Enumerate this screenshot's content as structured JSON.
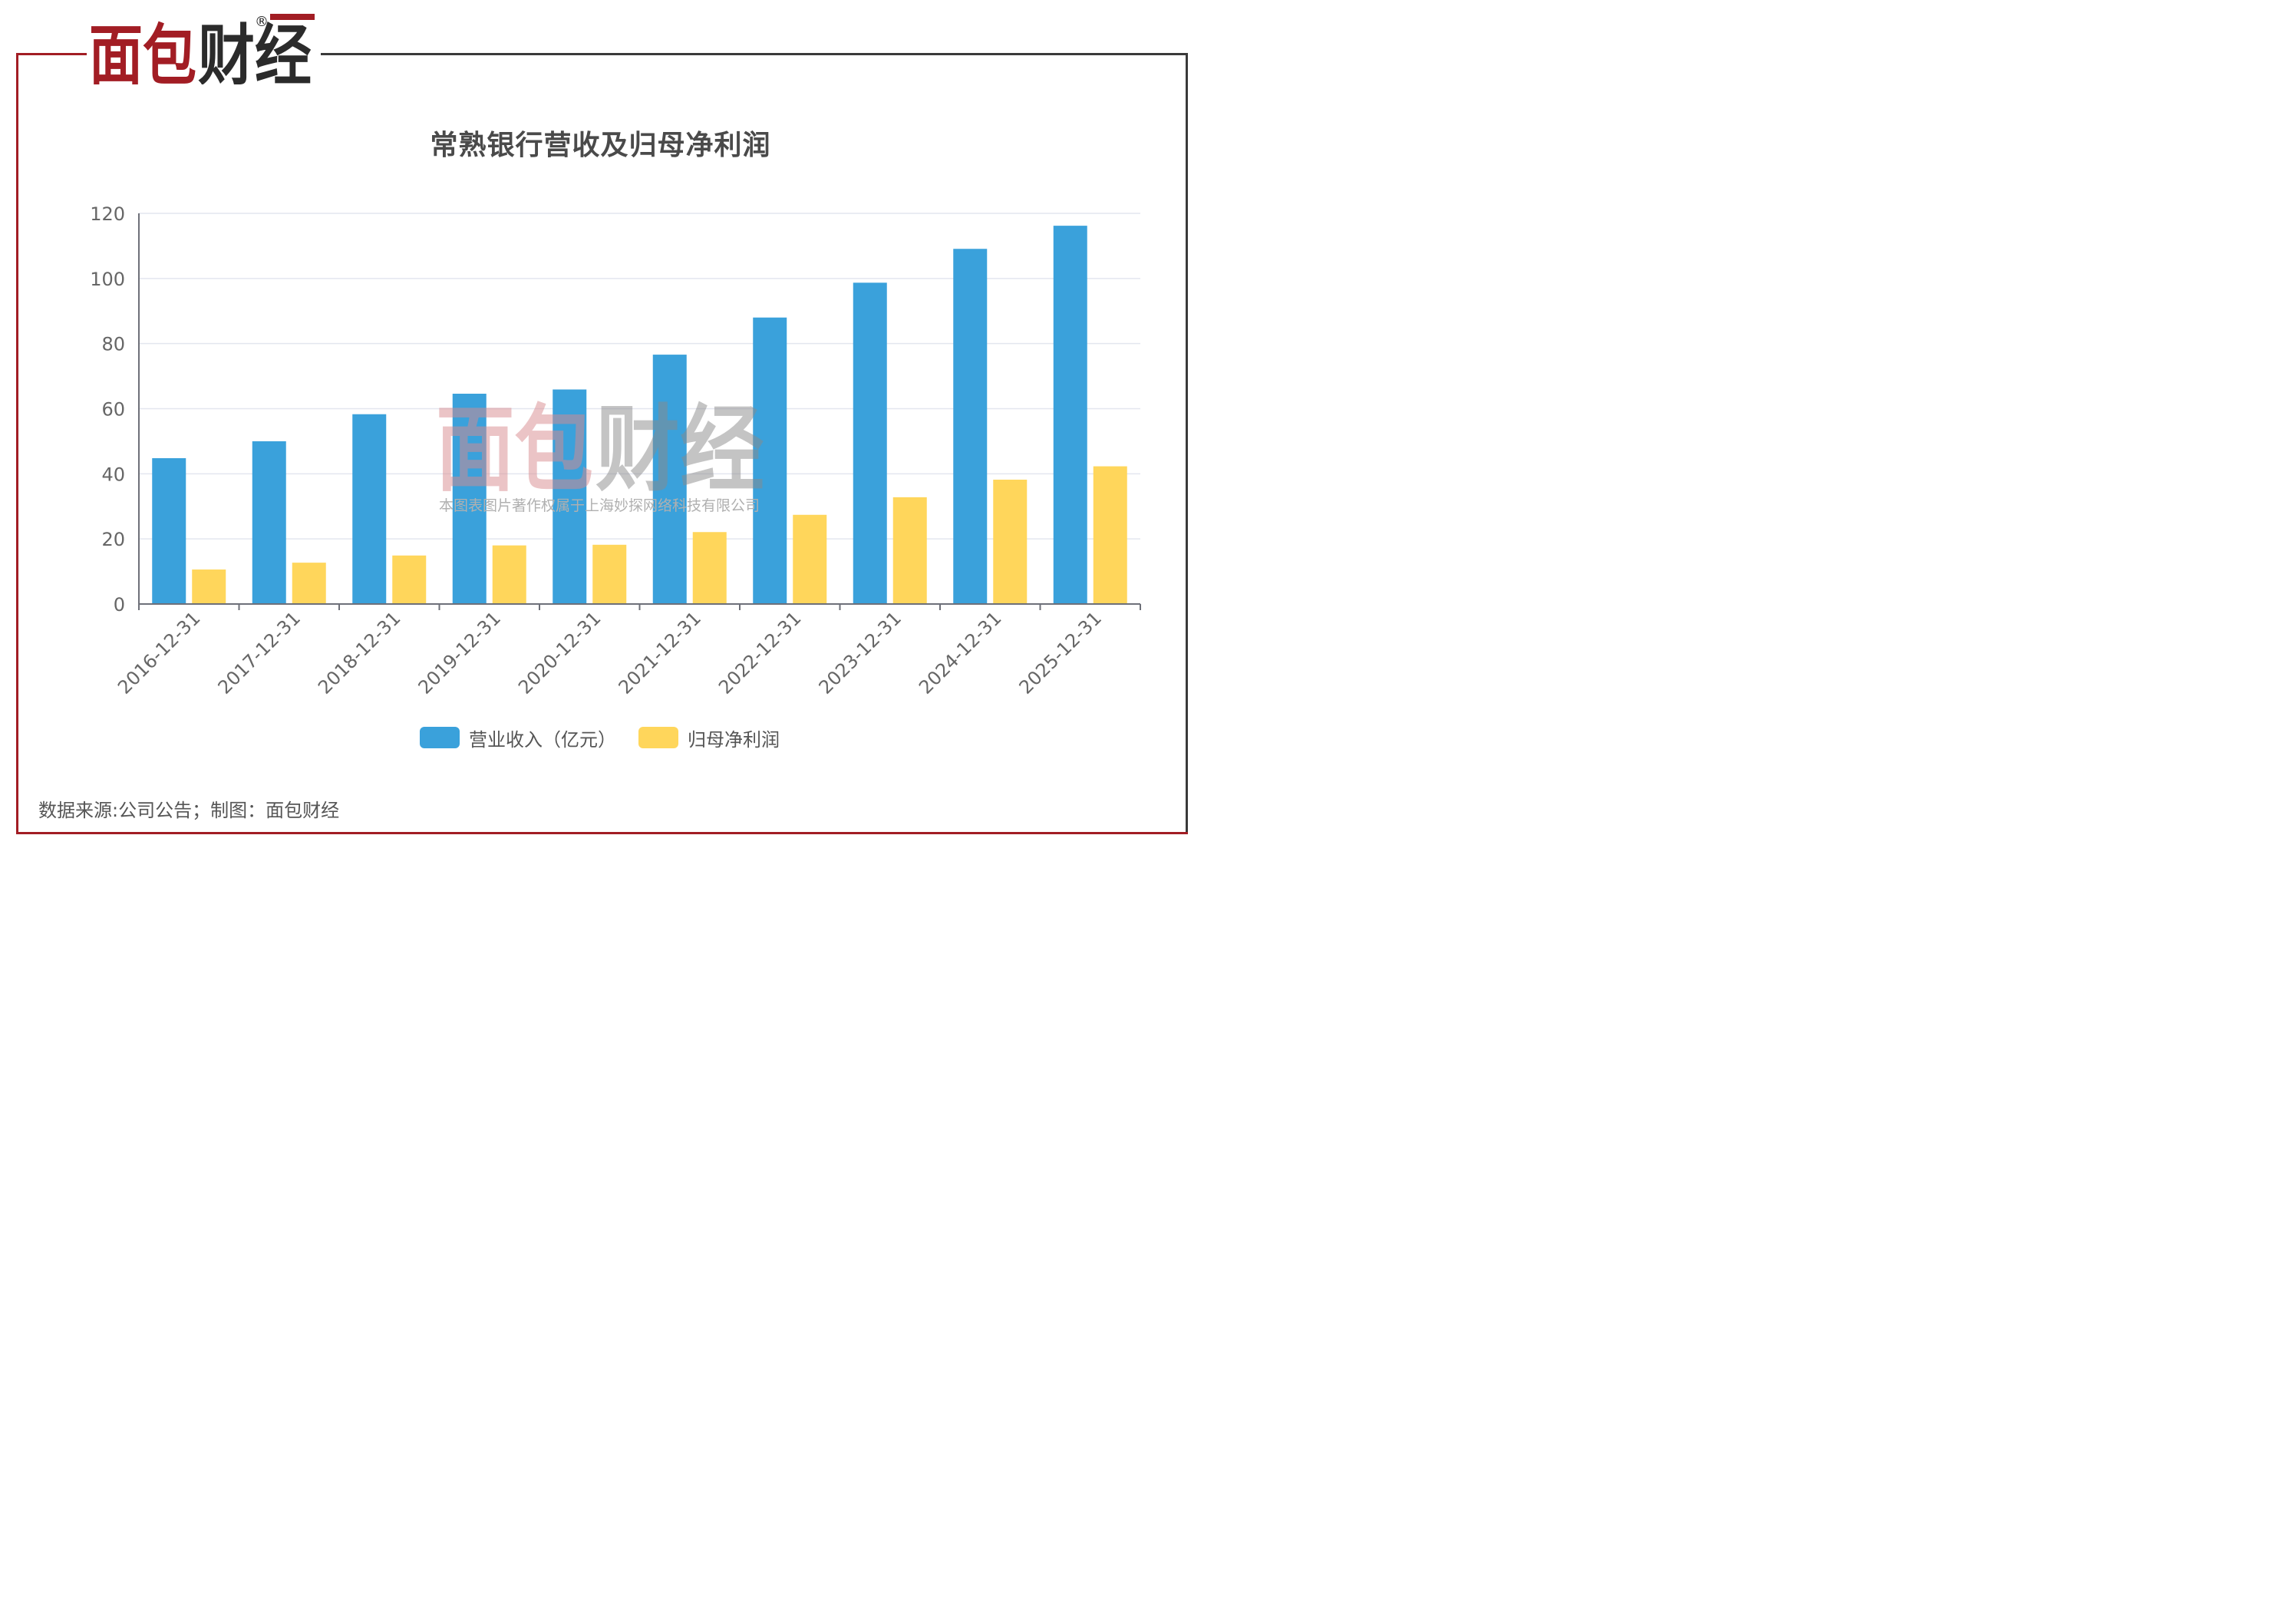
{
  "brand": {
    "logo_text": "面包财经",
    "registered_mark": "®",
    "colors": {
      "red": "#a21d24",
      "dark": "#2b2b2b"
    }
  },
  "watermark": {
    "logo_text": "面包财经",
    "note": "本图表图片著作权属于上海妙探网络科技有限公司"
  },
  "source_text": "数据来源:公司公告；制图：面包财经",
  "chart_data": {
    "type": "bar",
    "title": "常熟银行营收及归母净利润",
    "xlabel": "",
    "ylabel": "",
    "ylim": [
      0,
      120
    ],
    "yticks": [
      0,
      20,
      40,
      60,
      80,
      100,
      120
    ],
    "grid": true,
    "legend_position": "bottom",
    "categories": [
      "2016-12-31",
      "2017-12-31",
      "2018-12-31",
      "2019-12-31",
      "2020-12-31",
      "2021-12-31",
      "2022-12-31",
      "2023-12-31",
      "2024-12-31",
      "2025-12-31"
    ],
    "series": [
      {
        "name": "营业收入（亿元）",
        "color": "#3aa1db",
        "values": [
          44.8,
          50.0,
          58.3,
          64.6,
          65.9,
          76.6,
          88.0,
          98.7,
          109.1,
          116.2
        ]
      },
      {
        "name": "归母净利润",
        "color": "#ffd65b",
        "values": [
          10.6,
          12.7,
          14.9,
          18.0,
          18.2,
          22.1,
          27.4,
          32.8,
          38.2,
          42.3
        ]
      }
    ]
  }
}
